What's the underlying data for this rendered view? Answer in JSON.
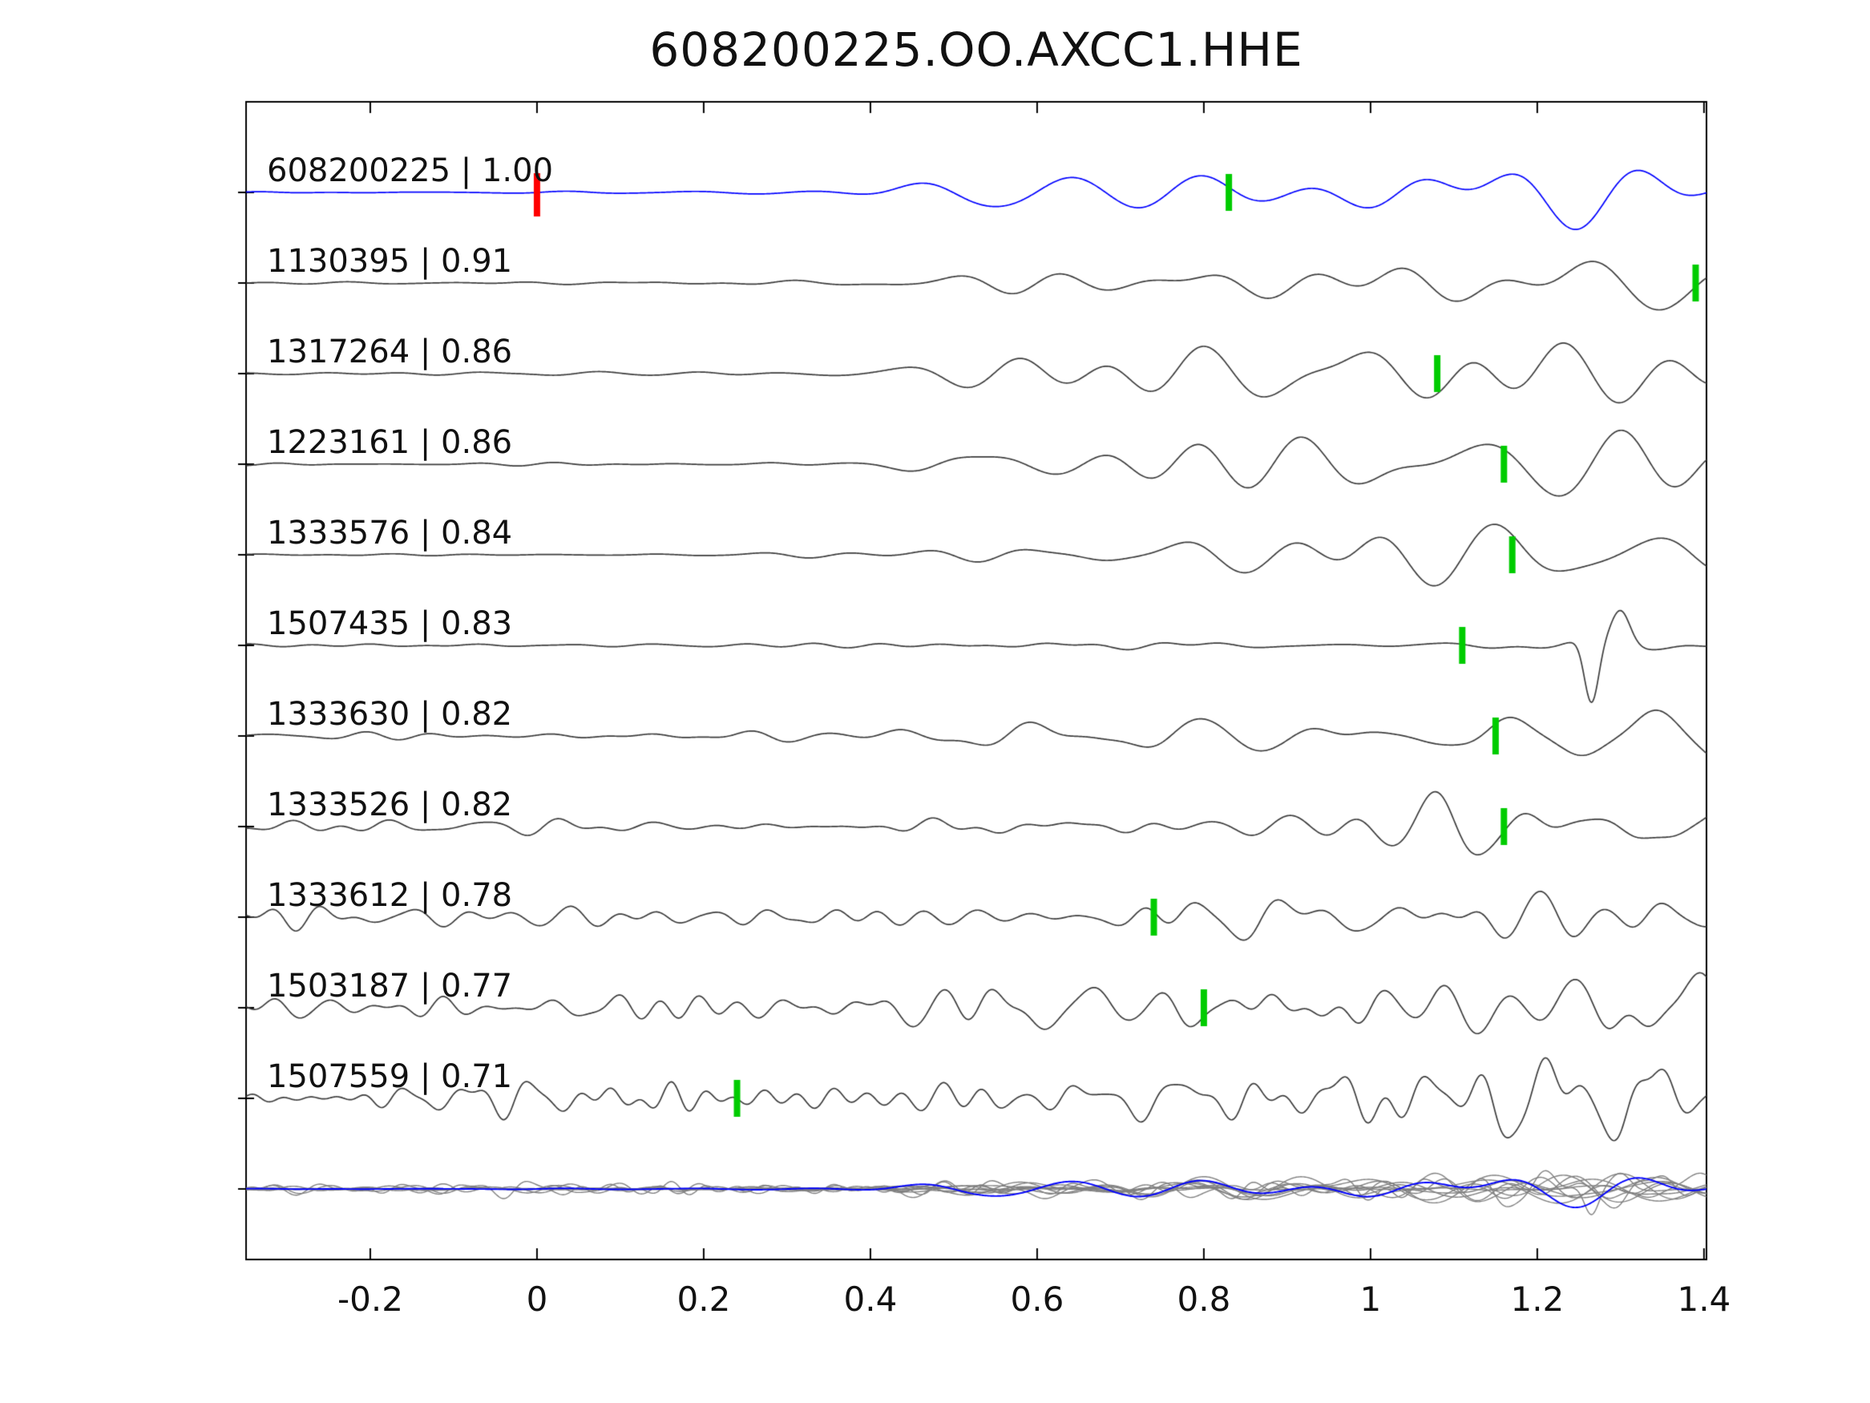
{
  "title": "608200225.OO.AXCC1.HHE",
  "chart_data": {
    "type": "line",
    "title": "608200225.OO.AXCC1.HHE",
    "xlabel": "",
    "ylabel": "",
    "xlim": [
      -0.349,
      1.403
    ],
    "grid": false,
    "legend": false,
    "xticks": [
      {
        "value": -0.2,
        "label": "-0.2"
      },
      {
        "value": 0.0,
        "label": "0"
      },
      {
        "value": 0.2,
        "label": "0.2"
      },
      {
        "value": 0.4,
        "label": "0.4"
      },
      {
        "value": 0.6,
        "label": "0.6"
      },
      {
        "value": 0.8,
        "label": "0.8"
      },
      {
        "value": 1.0,
        "label": "1"
      },
      {
        "value": 1.2,
        "label": "1.2"
      },
      {
        "value": 1.4,
        "label": "1.4"
      }
    ],
    "colors": {
      "reference_trace": "#0000ff",
      "trace": "#3c3c3c",
      "overlay_trace": "#808080",
      "pick_marker": "#00cc00",
      "reference_marker": "#ff0000",
      "axis": "#000000"
    },
    "traces": [
      {
        "id": "608200225",
        "cc": 1.0,
        "label": "608200225 | 1.00",
        "pick": 0.83,
        "reference_pick": 0.0,
        "is_reference": true,
        "render": {
          "seed": 11,
          "noise": 1.5,
          "signal": 58,
          "f0": 3,
          "f1": 9,
          "nf0": 5,
          "nf1": 14
        }
      },
      {
        "id": "1130395",
        "cc": 0.91,
        "label": "1130395 | 0.91",
        "pick": 1.39,
        "render": {
          "seed": 23,
          "noise": 1.8,
          "signal": 62,
          "f0": 3.5,
          "f1": 10,
          "nf0": 5,
          "nf1": 14
        }
      },
      {
        "id": "1317264",
        "cc": 0.86,
        "label": "1317264 | 0.86",
        "pick": 1.08,
        "render": {
          "seed": 37,
          "noise": 2.5,
          "signal": 54,
          "f0": 4,
          "f1": 11,
          "nf0": 6,
          "nf1": 15
        }
      },
      {
        "id": "1223161",
        "cc": 0.86,
        "label": "1223161 | 0.86",
        "pick": 1.16,
        "render": {
          "seed": 41,
          "noise": 2.2,
          "signal": 58,
          "f0": 3.5,
          "f1": 10,
          "nf0": 6,
          "nf1": 15
        }
      },
      {
        "id": "1333576",
        "cc": 0.84,
        "label": "1333576 | 0.84",
        "pick": 1.17,
        "render": {
          "seed": 53,
          "noise": 2.5,
          "signal": 48,
          "f0": 4,
          "f1": 11,
          "nf0": 6,
          "nf1": 15
        }
      },
      {
        "id": "1507435",
        "cc": 0.83,
        "label": "1507435 | 0.83",
        "pick": 1.11,
        "render": {
          "seed": 67,
          "noise": 3,
          "signal": 7,
          "f0": 4,
          "f1": 12,
          "nf0": 6,
          "nf1": 16,
          "spike": {
            "x": 1.265,
            "amp": 78
          }
        }
      },
      {
        "id": "1333630",
        "cc": 0.82,
        "label": "1333630 | 0.82",
        "pick": 1.15,
        "render": {
          "seed": 71,
          "noise": 6,
          "signal": 46,
          "f0": 4.5,
          "f1": 12,
          "nf0": 7,
          "nf1": 18
        }
      },
      {
        "id": "1333526",
        "cc": 0.82,
        "label": "1333526 | 0.82",
        "pick": 1.16,
        "render": {
          "seed": 83,
          "noise": 11,
          "signal": 46,
          "f0": 5,
          "f1": 13,
          "nf0": 8,
          "nf1": 20
        }
      },
      {
        "id": "1333612",
        "cc": 0.78,
        "label": "1333612 | 0.78",
        "pick": 0.74,
        "render": {
          "seed": 97,
          "noise": 17,
          "signal": 50,
          "f0": 5,
          "f1": 14,
          "nf0": 9,
          "nf1": 24
        }
      },
      {
        "id": "1503187",
        "cc": 0.77,
        "label": "1503187 | 0.77",
        "pick": 0.8,
        "render": {
          "seed": 103,
          "noise": 22,
          "signal": 52,
          "f0": 5,
          "f1": 14,
          "nf0": 9,
          "nf1": 26
        }
      },
      {
        "id": "1507559",
        "cc": 0.71,
        "label": "1507559 | 0.71",
        "pick": 0.24,
        "render": {
          "seed": 113,
          "noise": 28,
          "signal": 44,
          "f0": 6,
          "f1": 16,
          "nf0": 10,
          "nf1": 30
        }
      }
    ],
    "overlay_row": {
      "amplitude_scale": 0.45
    }
  }
}
